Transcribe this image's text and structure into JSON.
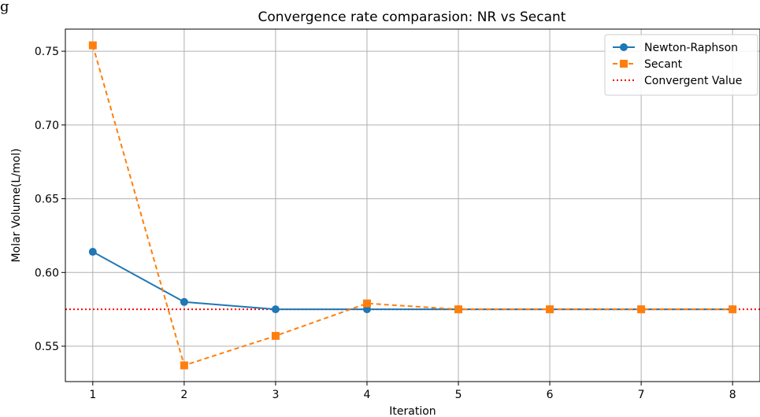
{
  "page_fragment": "g",
  "chart_data": {
    "type": "line",
    "title": "Convergence rate comparasion: NR vs Secant",
    "xlabel": "Iteration",
    "ylabel": "Molar Volume(L/mol)",
    "xlim": [
      0.7,
      8.3
    ],
    "ylim": [
      0.526,
      0.765
    ],
    "x_ticks": [
      1,
      2,
      3,
      4,
      5,
      6,
      7,
      8
    ],
    "y_ticks": [
      0.55,
      0.6,
      0.65,
      0.7,
      0.75
    ],
    "y_tick_labels": [
      "0.55",
      "0.60",
      "0.65",
      "0.70",
      "0.75"
    ],
    "grid": true,
    "legend_position": "top-right",
    "series": [
      {
        "name": "Newton-Raphson",
        "color": "#1f77b4",
        "line_style": "solid",
        "marker": "circle",
        "x": [
          1,
          2,
          3,
          4,
          5,
          6,
          7,
          8
        ],
        "y": [
          0.614,
          0.58,
          0.575,
          0.575,
          0.575,
          0.575,
          0.575,
          0.575
        ]
      },
      {
        "name": "Secant",
        "color": "#ff7f0e",
        "line_style": "dashed",
        "marker": "square",
        "x": [
          1,
          2,
          3,
          4,
          5,
          6,
          7,
          8
        ],
        "y": [
          0.754,
          0.537,
          0.557,
          0.579,
          0.575,
          0.575,
          0.575,
          0.575
        ]
      }
    ],
    "reference_line": {
      "name": "Convergent Value",
      "color": "#ff0000",
      "line_style": "dotted",
      "y": 0.575
    }
  }
}
